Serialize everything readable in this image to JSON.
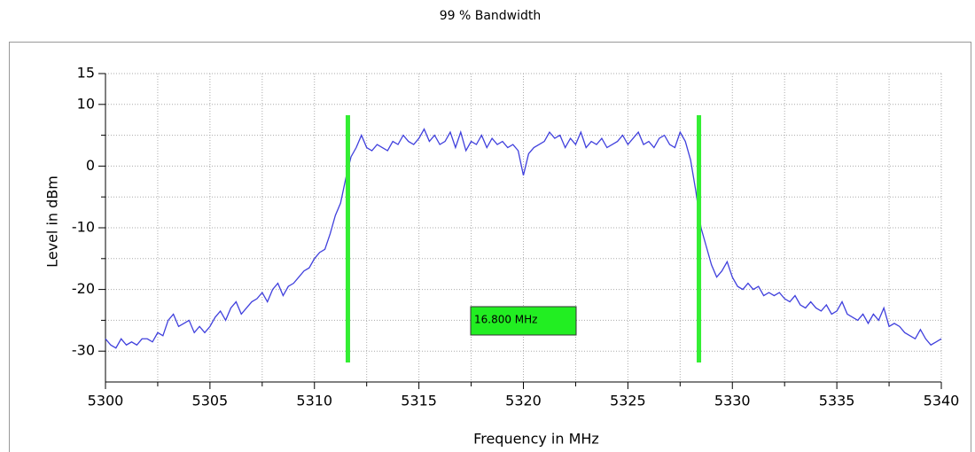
{
  "chart_data": {
    "type": "line",
    "title": "99 % Bandwidth",
    "x_label": "Frequency in MHz",
    "y_label": "Level in dBm",
    "xlim": [
      5300,
      5340
    ],
    "xticks": [
      5300,
      5305,
      5310,
      5315,
      5320,
      5325,
      5330,
      5335,
      5340
    ],
    "xminor": [
      5302.5,
      5307.5,
      5312.5,
      5317.5,
      5322.5,
      5327.5,
      5332.5,
      5337.5
    ],
    "ylim": [
      -35,
      15
    ],
    "yticks": [
      15,
      10,
      0,
      -10,
      -20,
      -30
    ],
    "yminor": [
      5,
      -5,
      -15,
      -25
    ],
    "grid": true,
    "markers": {
      "color": "#33ee33",
      "x": [
        5311.6,
        5328.4
      ]
    },
    "annotation": "16.800 MHz",
    "annotation_color": "#22ee22",
    "x": [
      5300,
      5300.25,
      5300.5,
      5300.75,
      5301,
      5301.25,
      5301.5,
      5301.75,
      5302,
      5302.25,
      5302.5,
      5302.75,
      5303,
      5303.25,
      5303.5,
      5303.75,
      5304,
      5304.25,
      5304.5,
      5304.75,
      5305,
      5305.25,
      5305.5,
      5305.75,
      5306,
      5306.25,
      5306.5,
      5306.75,
      5307,
      5307.25,
      5307.5,
      5307.75,
      5308,
      5308.25,
      5308.5,
      5308.75,
      5309,
      5309.25,
      5309.5,
      5309.75,
      5310,
      5310.25,
      5310.5,
      5310.75,
      5311,
      5311.25,
      5311.5,
      5311.75,
      5312,
      5312.25,
      5312.5,
      5312.75,
      5313,
      5313.25,
      5313.5,
      5313.75,
      5314,
      5314.25,
      5314.5,
      5314.75,
      5315,
      5315.25,
      5315.5,
      5315.75,
      5316,
      5316.25,
      5316.5,
      5316.75,
      5317,
      5317.25,
      5317.5,
      5317.75,
      5318,
      5318.25,
      5318.5,
      5318.75,
      5319,
      5319.25,
      5319.5,
      5319.75,
      5320,
      5320.25,
      5320.5,
      5320.75,
      5321,
      5321.25,
      5321.5,
      5321.75,
      5322,
      5322.25,
      5322.5,
      5322.75,
      5323,
      5323.25,
      5323.5,
      5323.75,
      5324,
      5324.25,
      5324.5,
      5324.75,
      5325,
      5325.25,
      5325.5,
      5325.75,
      5326,
      5326.25,
      5326.5,
      5326.75,
      5327,
      5327.25,
      5327.5,
      5327.75,
      5328,
      5328.25,
      5328.5,
      5328.75,
      5329,
      5329.25,
      5329.5,
      5329.75,
      5330,
      5330.25,
      5330.5,
      5330.75,
      5331,
      5331.25,
      5331.5,
      5331.75,
      5332,
      5332.25,
      5332.5,
      5332.75,
      5333,
      5333.25,
      5333.5,
      5333.75,
      5334,
      5334.25,
      5334.5,
      5334.75,
      5335,
      5335.25,
      5335.5,
      5335.75,
      5336,
      5336.25,
      5336.5,
      5336.75,
      5337,
      5337.25,
      5337.5,
      5337.75,
      5338,
      5338.25,
      5338.5,
      5338.75,
      5339,
      5339.25,
      5339.5,
      5339.75,
      5340
    ],
    "series": [
      {
        "color": "#4040dd",
        "values": [
          -28,
          -29,
          -29.5,
          -28,
          -29,
          -28.5,
          -29,
          -28,
          -28,
          -28.5,
          -27,
          -27.5,
          -25,
          -24,
          -26,
          -25.5,
          -25,
          -27,
          -26,
          -27,
          -26,
          -24.5,
          -23.5,
          -25,
          -23,
          -22,
          -24,
          -23,
          -22,
          -21.5,
          -20.5,
          -22,
          -20,
          -19,
          -21,
          -19.5,
          -19,
          -18,
          -17,
          -16.5,
          -15,
          -14,
          -13.5,
          -11,
          -8,
          -6,
          -2,
          1.5,
          3,
          5,
          3,
          2.5,
          3.5,
          3,
          2.5,
          4,
          3.5,
          5,
          4,
          3.5,
          4.5,
          6,
          4,
          5,
          3.5,
          4,
          5.5,
          3,
          5.5,
          2.5,
          4,
          3.5,
          5,
          3,
          4.5,
          3.5,
          4,
          3,
          3.5,
          2.5,
          -1.5,
          2,
          3,
          3.5,
          4,
          5.5,
          4.5,
          5,
          3,
          4.5,
          3.5,
          5.5,
          3,
          4,
          3.5,
          4.5,
          3,
          3.5,
          4,
          5,
          3.5,
          4.5,
          5.5,
          3.5,
          4,
          3,
          4.5,
          5,
          3.5,
          3,
          5.5,
          4,
          1,
          -4,
          -10,
          -13,
          -16,
          -18,
          -17,
          -15.5,
          -18,
          -19.5,
          -20,
          -19,
          -20,
          -19.5,
          -21,
          -20.5,
          -21,
          -20.5,
          -21.5,
          -22,
          -21,
          -22.5,
          -23,
          -22,
          -23,
          -23.5,
          -22.5,
          -24,
          -23.5,
          -22,
          -24,
          -24.5,
          -25,
          -24,
          -25.5,
          -24,
          -25,
          -23,
          -26,
          -25.5,
          -26,
          -27,
          -27.5,
          -28,
          -26.5,
          -28,
          -29,
          -28.5,
          -28
        ]
      }
    ]
  }
}
